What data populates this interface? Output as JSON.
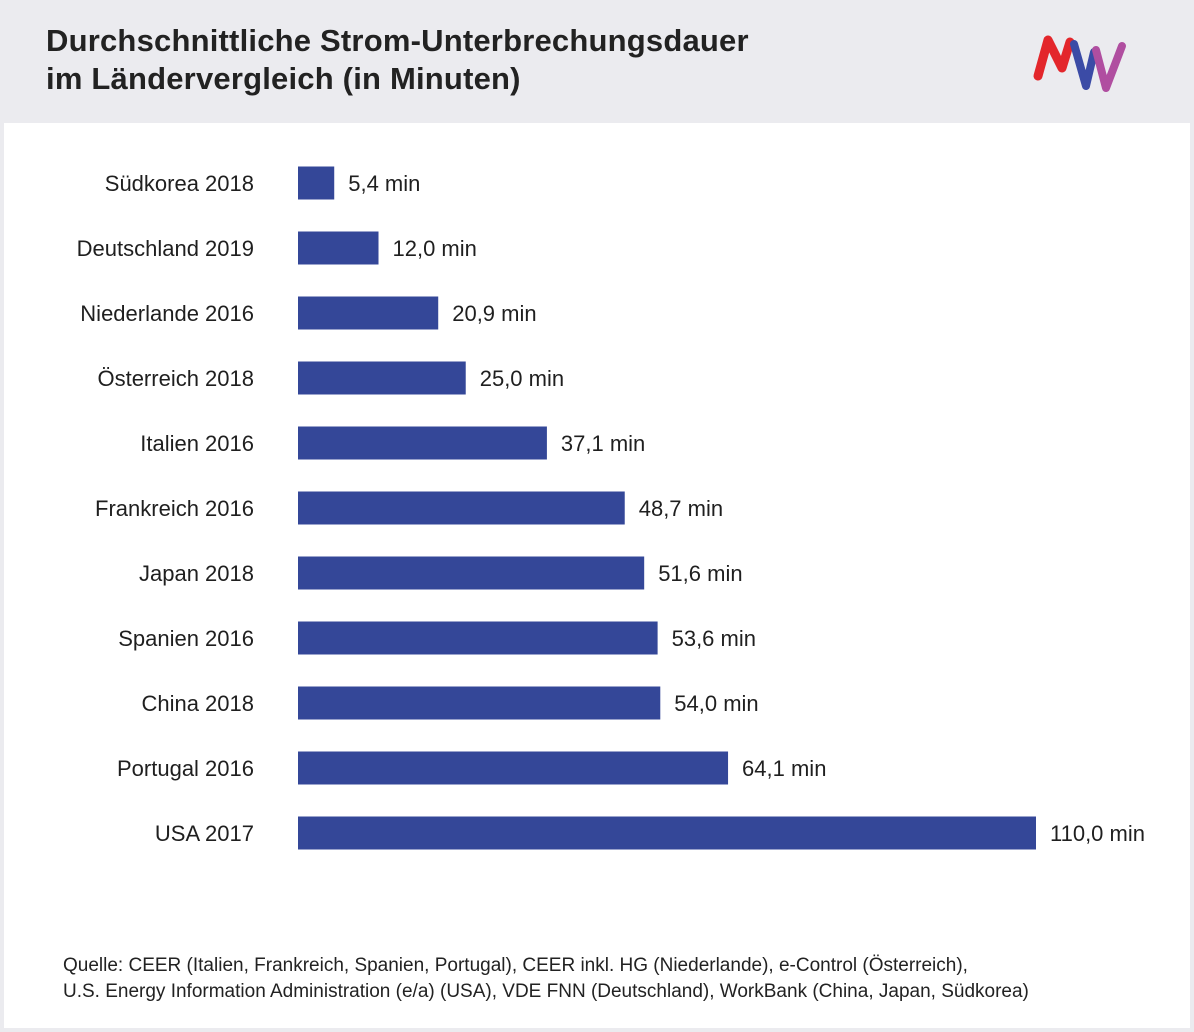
{
  "header": {
    "title_line1": "Durchschnittliche Strom-Unterbrechungsdauer",
    "title_line2": "im Ländervergleich (in Minuten)",
    "logo_icon": "mvv-logo-icon",
    "logo_colors": [
      "#e3262b",
      "#3b4ba6",
      "#b04ea0"
    ]
  },
  "chart_data": {
    "type": "bar",
    "orientation": "horizontal",
    "title": "Durchschnittliche Strom-Unterbrechungsdauer im Ländervergleich (in Minuten)",
    "categories": [
      "Südkorea 2018",
      "Deutschland 2019",
      "Niederlande 2016",
      "Österreich 2018",
      "Italien 2016",
      "Frankreich 2016",
      "Japan 2018",
      "Spanien 2016",
      "China 2018",
      "Portugal 2016",
      "USA 2017"
    ],
    "values": [
      5.4,
      12.0,
      20.9,
      25.0,
      37.1,
      48.7,
      51.6,
      53.6,
      54.0,
      64.1,
      110.0
    ],
    "value_labels": [
      "5,4 min",
      "12,0 min",
      "20,9 min",
      "25,0 min",
      "37,1 min",
      "48,7 min",
      "51,6 min",
      "53,6 min",
      "54,0 min",
      "64,1 min",
      "110,0 min"
    ],
    "xlim": [
      0,
      110
    ],
    "grid": false,
    "bar_color": "#344798"
  },
  "source": {
    "line1": "Quelle: CEER (Italien, Frankreich, Spanien, Portugal), CEER inkl. HG (Niederlande), e-Control (Österreich),",
    "line2": "U.S. Energy Information Administration (e/a) (USA), VDE FNN (Deutschland), WorkBank (China, Japan, Südkorea)"
  }
}
